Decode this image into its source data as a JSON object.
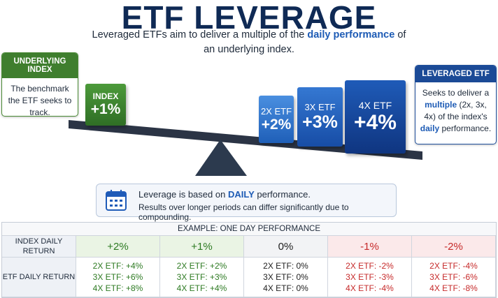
{
  "header": {
    "title": "ETF LEVERAGE",
    "subtitle": [
      "Leveraged ETFs aim to deliver a multiple of the ",
      "daily performance",
      " of an underlying index."
    ]
  },
  "underlying_index": {
    "label": "UNDERLYING INDEX",
    "text": "The benchmark the ETF seeks to track."
  },
  "leveraged_etf": {
    "label": "LEVERAGED ETF",
    "text": [
      "Seeks to deliver a ",
      "multiple",
      " (2x, 3x, 4x) of the index's ",
      "daily",
      " performance."
    ]
  },
  "blocks": [
    {
      "label": "INDEX",
      "value": "+1%"
    },
    {
      "label": "2X ETF",
      "value": "+2%"
    },
    {
      "label": "3X ETF",
      "value": "+3%"
    },
    {
      "label": "4X ETF",
      "value": "+4%"
    }
  ],
  "note": {
    "line1": [
      "Leverage is based on ",
      "DAILY",
      " performance."
    ],
    "line2": "Results over longer periods can differ significantly due to compounding."
  },
  "table": {
    "title": "EXAMPLE: ONE DAY PERFORMANCE",
    "row_headers": [
      "INDEX DAILY RETURN",
      "ETF DAILY RETURN"
    ],
    "columns": [
      {
        "index": "+2%",
        "etf": [
          "2X ETF: +4%",
          "3X ETF: +6%",
          "4X ETF: +8%"
        ]
      },
      {
        "index": "+1%",
        "etf": [
          "2X ETF: +2%",
          "3X ETF: +3%",
          "4X ETF: +4%"
        ]
      },
      {
        "index": "0%",
        "etf": [
          "2X ETF: 0%",
          "3X ETF: 0%",
          "4X ETF: 0%"
        ]
      },
      {
        "index": "-1%",
        "etf": [
          "2X ETF: -2%",
          "3X ETF: -3%",
          "4X ETF: -4%"
        ]
      },
      {
        "index": "-2%",
        "etf": [
          "2X ETF: -4%",
          "3X ETF: -6%",
          "4X ETF: -8%"
        ]
      }
    ]
  }
}
